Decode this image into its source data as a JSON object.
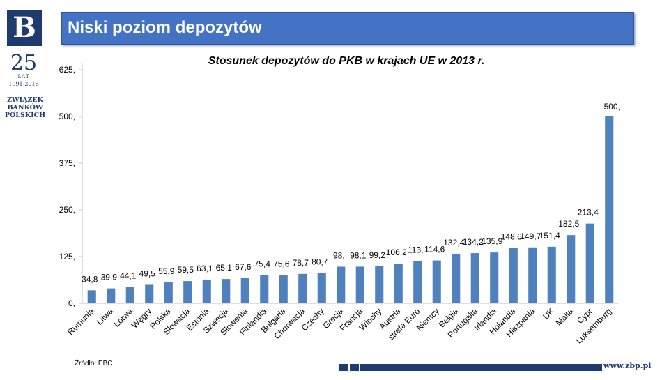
{
  "brand": {
    "logo_letter": "B",
    "anniversary_number": "25",
    "anniversary_word": "LAT",
    "anniversary_years": "1991-2016",
    "org_line1": "ZWIĄZEK",
    "org_line2": "BANKÓW",
    "org_line3": "POLSKICH"
  },
  "header": {
    "title": "Niski poziom depozytów"
  },
  "footer": {
    "source": "Źródło: EBC",
    "url": "www.zbp.pl"
  },
  "colors": {
    "bar": "#4f81bd",
    "header": "#4472c4",
    "brand": "#1f3a6e"
  },
  "chart_data": {
    "type": "bar",
    "title": "Stosunek depozytów do PKB w krajach UE w 2013 r.",
    "xlabel": "",
    "ylabel": "",
    "ylim": [
      0,
      625
    ],
    "yticks": [
      0,
      125,
      250,
      375,
      500,
      625
    ],
    "ytick_labels": [
      "0,",
      "125,",
      "250,",
      "375,",
      "500,",
      "625,"
    ],
    "grid": false,
    "categories": [
      "Rumunia",
      "Litwa",
      "Łotwa",
      "Węgry",
      "Polska",
      "Słowacja",
      "Estonia",
      "Szwecja",
      "Słowenia",
      "Finlandia",
      "Bułgaria",
      "Chorwacja",
      "Czechy",
      "Grecja",
      "Francja",
      "Włochy",
      "Austria",
      "strefa Euro",
      "Niemcy",
      "Belgia",
      "Portugalia",
      "Irlandia",
      "Holandia",
      "Hiszpania",
      "UK",
      "Malta",
      "Cypr",
      "Luksemburg"
    ],
    "values": [
      34.8,
      39.9,
      44.1,
      49.5,
      55.9,
      59.5,
      63.1,
      65.1,
      67.6,
      75.4,
      75.6,
      78.7,
      80.7,
      98,
      98.1,
      99.2,
      106.2,
      113,
      114.6,
      132.4,
      134.2,
      135.9,
      148.6,
      149.7,
      151.4,
      182.5,
      213.4,
      500
    ],
    "value_labels": [
      "34,8",
      "39,9",
      "44,1",
      "49,5",
      "55,9",
      "59,5",
      "63,1",
      "65,1",
      "67,6",
      "75,4",
      "75,6",
      "78,7",
      "80,7",
      "98,",
      "98,1",
      "99,2",
      "106,2",
      "113,",
      "114,6",
      "132,4",
      "134,2",
      "135,9",
      "148,6",
      "149,7",
      "151,4",
      "182,5",
      "213,4",
      "500,"
    ]
  }
}
